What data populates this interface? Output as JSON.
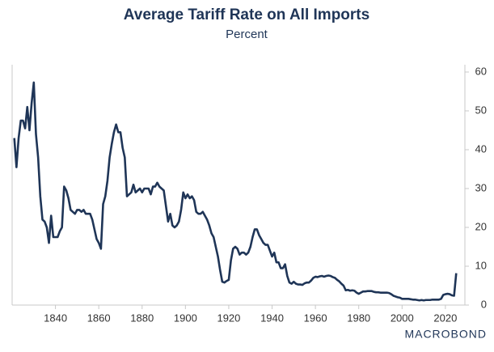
{
  "chart_data": {
    "type": "line",
    "title": "Average Tariff Rate on All Imports",
    "subtitle": "Percent",
    "logo": "MACROBOND",
    "x": [
      1821,
      1822,
      1823,
      1824,
      1825,
      1826,
      1827,
      1828,
      1829,
      1830,
      1831,
      1832,
      1833,
      1834,
      1835,
      1836,
      1837,
      1838,
      1839,
      1840,
      1841,
      1842,
      1843,
      1844,
      1845,
      1846,
      1847,
      1848,
      1849,
      1850,
      1851,
      1852,
      1853,
      1854,
      1855,
      1856,
      1857,
      1858,
      1859,
      1860,
      1861,
      1862,
      1863,
      1864,
      1865,
      1866,
      1867,
      1868,
      1869,
      1870,
      1871,
      1872,
      1873,
      1874,
      1875,
      1876,
      1877,
      1878,
      1879,
      1880,
      1881,
      1882,
      1883,
      1884,
      1885,
      1886,
      1887,
      1888,
      1889,
      1890,
      1891,
      1892,
      1893,
      1894,
      1895,
      1896,
      1897,
      1898,
      1899,
      1900,
      1901,
      1902,
      1903,
      1904,
      1905,
      1906,
      1907,
      1908,
      1909,
      1910,
      1911,
      1912,
      1913,
      1914,
      1915,
      1916,
      1917,
      1918,
      1919,
      1920,
      1921,
      1922,
      1923,
      1924,
      1925,
      1926,
      1927,
      1928,
      1929,
      1930,
      1931,
      1932,
      1933,
      1934,
      1935,
      1936,
      1937,
      1938,
      1939,
      1940,
      1941,
      1942,
      1943,
      1944,
      1945,
      1946,
      1947,
      1948,
      1949,
      1950,
      1951,
      1952,
      1953,
      1954,
      1955,
      1956,
      1957,
      1958,
      1959,
      1960,
      1961,
      1962,
      1963,
      1964,
      1965,
      1966,
      1967,
      1968,
      1969,
      1970,
      1971,
      1972,
      1973,
      1974,
      1975,
      1976,
      1977,
      1978,
      1979,
      1980,
      1981,
      1982,
      1983,
      1984,
      1985,
      1986,
      1987,
      1988,
      1989,
      1990,
      1991,
      1992,
      1993,
      1994,
      1995,
      1996,
      1997,
      1998,
      1999,
      2000,
      2001,
      2002,
      2003,
      2004,
      2005,
      2006,
      2007,
      2008,
      2009,
      2010,
      2011,
      2012,
      2013,
      2014,
      2015,
      2016,
      2017,
      2018,
      2019,
      2020,
      2021,
      2022,
      2023,
      2024,
      2025
    ],
    "series": [
      {
        "name": "Average Tariff Rate",
        "color": "#1f3557",
        "values": [
          43,
          35.5,
          43,
          47.5,
          47.5,
          45.5,
          51,
          45,
          52,
          57.3,
          44,
          38,
          28,
          22,
          21.5,
          20,
          16,
          23,
          17.5,
          17.5,
          17.5,
          19,
          20,
          30.5,
          29.5,
          27.5,
          24.5,
          24,
          23.5,
          24.5,
          24.5,
          24,
          24.5,
          23.5,
          23.5,
          23.5,
          22,
          19.5,
          17,
          16,
          14.5,
          26,
          28,
          32,
          38,
          41.5,
          44.5,
          46.5,
          44.5,
          44.5,
          40.5,
          38,
          28,
          28.5,
          29,
          31,
          29,
          29.5,
          30,
          29,
          30,
          30,
          30,
          28.5,
          30.5,
          30.5,
          31.5,
          30.5,
          30,
          29.5,
          25.5,
          21.5,
          23.5,
          20.5,
          20,
          20.5,
          21.5,
          24.5,
          29,
          27.5,
          28.5,
          27.5,
          28,
          27,
          24,
          23.5,
          23.5,
          24,
          23,
          22,
          20.5,
          18.5,
          17.5,
          15,
          12.5,
          9,
          6,
          5.8,
          6.2,
          6.5,
          11.5,
          14.5,
          15,
          14.5,
          13,
          13.5,
          13.5,
          13,
          13.5,
          15,
          17.5,
          19.5,
          19.5,
          18,
          17,
          16,
          15.5,
          15.5,
          14,
          12.5,
          13.5,
          11,
          11,
          9.5,
          9.5,
          10.5,
          7.5,
          5.8,
          5.5,
          6,
          5.5,
          5.3,
          5.3,
          5.2,
          5.6,
          5.8,
          5.8,
          6.3,
          7,
          7.3,
          7.2,
          7.4,
          7.5,
          7.3,
          7.5,
          7.6,
          7.5,
          7.2,
          7,
          6.5,
          6.1,
          5.5,
          5,
          3.8,
          3.9,
          3.7,
          3.8,
          3.7,
          3.2,
          2.9,
          3.2,
          3.5,
          3.5,
          3.6,
          3.6,
          3.6,
          3.4,
          3.3,
          3.3,
          3.2,
          3.2,
          3.2,
          3.2,
          3.1,
          2.8,
          2.4,
          2.2,
          2,
          1.9,
          1.6,
          1.6,
          1.6,
          1.6,
          1.5,
          1.4,
          1.4,
          1.3,
          1.2,
          1.3,
          1.2,
          1.3,
          1.3,
          1.3,
          1.4,
          1.4,
          1.4,
          1.4,
          1.6,
          2.6,
          2.8,
          2.9,
          2.8,
          2.5,
          2.4,
          8.2
        ]
      }
    ],
    "xlim": [
      1820,
      2029
    ],
    "xticks": [
      1840,
      1860,
      1880,
      1900,
      1920,
      1940,
      1960,
      1980,
      2000,
      2020
    ],
    "ylim": [
      0,
      60
    ],
    "yticks": [
      0,
      10,
      20,
      30,
      40,
      50,
      60
    ],
    "grid": false
  }
}
